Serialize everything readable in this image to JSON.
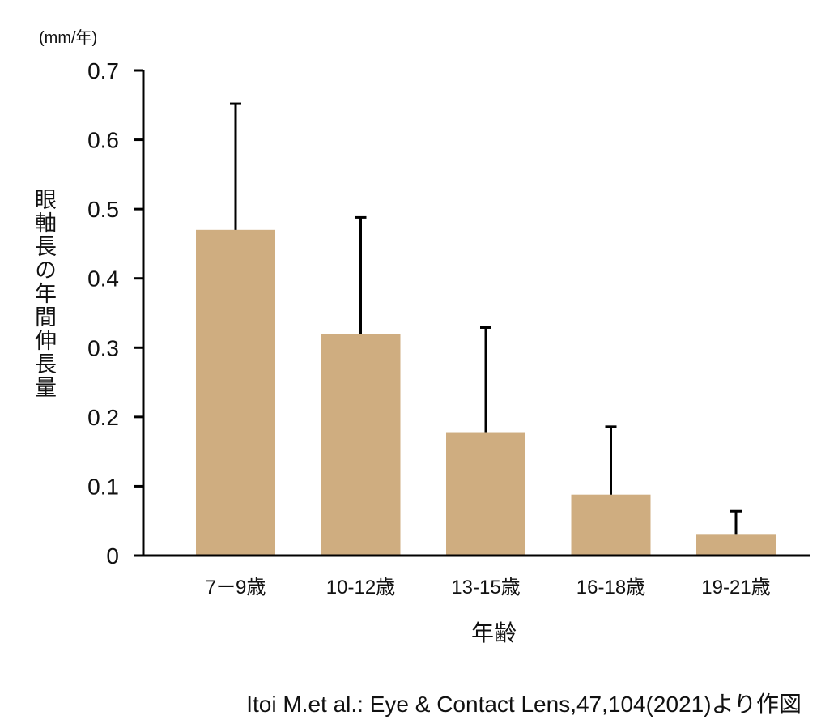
{
  "chart_data": {
    "type": "bar",
    "unit_label": "(mm/年)",
    "ylabel": "眼軸長の年間伸長量",
    "xlabel": "年齢",
    "categories": [
      "7ー9歳",
      "10-12歳",
      "13-15歳",
      "16-18歳",
      "19-21歳"
    ],
    "values": [
      0.47,
      0.32,
      0.177,
      0.088,
      0.03
    ],
    "error_upper": [
      0.652,
      0.488,
      0.329,
      0.186,
      0.064
    ],
    "ylim": [
      0,
      0.7
    ],
    "yticks": [
      0,
      0.1,
      0.2,
      0.3,
      0.4,
      0.5,
      0.6,
      0.7
    ],
    "ytick_labels": [
      "0",
      "0.1",
      "0.2",
      "0.3",
      "0.4",
      "0.5",
      "0.6",
      "0.7"
    ],
    "bar_color": "#CFAD80",
    "grid": false,
    "legend": "none"
  },
  "source_note": "Itoi M.et al.: Eye & Contact Lens,47,104(2021)より作図"
}
